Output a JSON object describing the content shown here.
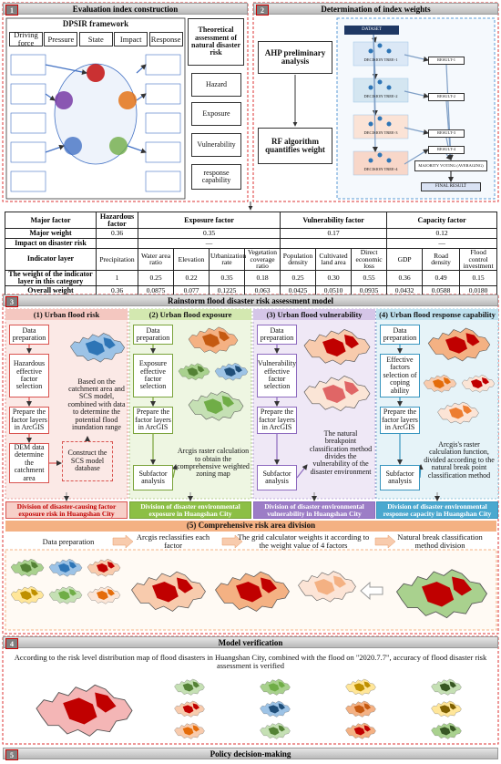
{
  "section1": {
    "number": "1",
    "title": "Evaluation index construction",
    "dpsir_title": "DPSIR framework",
    "dpsir": [
      "Driving force",
      "Pressure",
      "State",
      "Impact",
      "Response"
    ],
    "theory_title": "Theoretical assessment of natural disaster risk",
    "theory": [
      "Hazard",
      "Exposure",
      "Vulnerability",
      "response capability"
    ]
  },
  "section2": {
    "number": "2",
    "title": "Determination of index weights",
    "steps": [
      "AHP preliminary analysis",
      "RF algorithm quantifies weight"
    ],
    "flow": {
      "dataset": "DATASET",
      "trees": [
        "DECISION TREE-1",
        "DECISION TREE-2",
        "DECISION TREE-3",
        "DECISION TREE-4"
      ],
      "results": [
        "RESULT-1",
        "RESULT-2",
        "RESULT-3",
        "RESULT-4"
      ],
      "voting": "MAJORITY VOTING (AVERAGING)",
      "final": "FINAL RESULT"
    }
  },
  "table": {
    "major_factor": {
      "label": "Major factor",
      "values": [
        "Hazardous factor",
        "Exposure factor",
        "Vulnerability factor",
        "Capacity factor"
      ]
    },
    "major_weight": {
      "label": "Major weight",
      "values": [
        "0.36",
        "0.35",
        "0.17",
        "0.12"
      ]
    },
    "impact": {
      "label": "Impact on disaster risk",
      "values": [
        "—",
        "—"
      ]
    },
    "indicator_layer": {
      "label": "Indicator layer",
      "values": [
        "Precipitation",
        "Water area ratio",
        "Elevation",
        "Urbanization rate",
        "Vegetation coverage ratio",
        "Population density",
        "Cultivated land area",
        "Direct economic loss",
        "GDP",
        "Road density",
        "Flood control investment"
      ]
    },
    "category_weight": {
      "label": "The weight of the indicator layer in this category",
      "values": [
        "1",
        "0.25",
        "0.22",
        "0.35",
        "0.18",
        "0.25",
        "0.30",
        "0.55",
        "0.36",
        "0.49",
        "0.15"
      ]
    },
    "overall_weight": {
      "label": "Overall weight",
      "values": [
        "0.36",
        "0.0875",
        "0.077",
        "0.1225",
        "0.063",
        "0.0425",
        "0.0510",
        "0.0935",
        "0.0432",
        "0.0588",
        "0.0180"
      ]
    }
  },
  "section3": {
    "number": "3",
    "title": "Rainstorm flood disaster risk assessment model",
    "columns": [
      {
        "title": "(1) Urban flood risk",
        "steps": [
          "Data preparation",
          "Hazardous effective factor selection",
          "Prepare the factor layers in ArcGIS",
          "DEM data determine the catchment area"
        ],
        "notes": [
          "Based on the catchment area and SCS model, combined with data to determine the potential flood inundation range",
          "Construct the SCS model database"
        ],
        "division": "Division of disaster-causing factor exposure risk in Huangshan City"
      },
      {
        "title": "(2) Urban flood exposure",
        "steps": [
          "Data preparation",
          "Exposure effective factor selection",
          "Prepare the factor layers in ArcGIS",
          "Subfactor analysis"
        ],
        "notes": [
          "Arcgis raster calculation to obtain the comprehensive weighted zoning map"
        ],
        "division": "Division of disaster environmental exposure in Huangshan City"
      },
      {
        "title": "(3) Urban flood vulnerability",
        "steps": [
          "Data preparation",
          "Vulnerability effective factor selection",
          "Prepare the factor layers in ArcGIS",
          "Subfactor analysis"
        ],
        "notes": [
          "The natural breakpoint classification method divides the vulnerability of the disaster environment"
        ],
        "division": "Division of disaster environmental vulnerability in Huangshan City"
      },
      {
        "title": "(4) Urban flood response capability",
        "steps": [
          "Data preparation",
          "Effective factors selection of coping ability",
          "Prepare the factor layers in ArcGIS",
          "Subfactor analysis"
        ],
        "notes": [
          "Arcgis's raster calculation function, divided according to the natural break point classification method"
        ],
        "division": "Division of disaster environmental response capacity in Huangshan City"
      }
    ],
    "comprehensive": {
      "title": "(5) Comprehensive risk area division",
      "steps": [
        "Data preparation",
        "Arcgis reclassifies each factor",
        "The grid calculator weights it according to the weight value of 4 factors",
        "Natural break classification method division"
      ]
    }
  },
  "section4": {
    "number": "4",
    "title": "Model verification",
    "text": "According to the risk level distribution map of flood disasters in Huangshan City, combined with the flood on \"2020.7.7\", accuracy of flood disaster risk assessment is verified"
  },
  "section5": {
    "number": "5",
    "title": "Policy decision-making"
  }
}
